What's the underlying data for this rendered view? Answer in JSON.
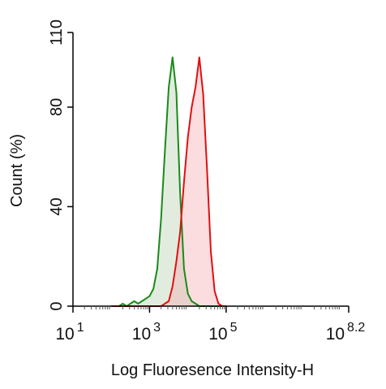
{
  "chart_data": {
    "type": "line",
    "x_label": "Log Fluoresence Intensity-H",
    "y_label": "Count  (%)",
    "x": [
      2.0,
      2.1,
      2.2,
      2.3,
      2.4,
      2.5,
      2.6,
      2.7,
      2.8,
      2.9,
      3.0,
      3.1,
      3.2,
      3.3,
      3.4,
      3.5,
      3.6,
      3.7,
      3.8,
      3.9,
      4.0,
      4.1,
      4.2,
      4.3,
      4.4,
      4.5,
      4.6,
      4.7,
      4.8,
      4.9,
      5.0
    ],
    "series": [
      {
        "color": "#1a8a1a",
        "fill": "rgba(170,200,160,0.35)",
        "values": [
          0,
          0,
          0,
          1,
          0,
          1,
          2,
          1,
          2,
          3,
          4,
          7,
          15,
          35,
          62,
          88,
          100,
          86,
          45,
          15,
          5,
          2,
          1,
          0,
          0,
          0,
          0,
          0,
          0,
          0,
          0
        ]
      },
      {
        "color": "#e01010",
        "fill": "rgba(245,170,175,0.4)",
        "values": [
          0,
          0,
          0,
          0,
          0,
          0,
          0,
          0,
          0,
          0,
          0,
          0,
          0,
          0,
          1,
          2,
          8,
          18,
          30,
          50,
          68,
          80,
          88,
          100,
          85,
          55,
          22,
          6,
          1,
          0,
          0
        ]
      }
    ],
    "xlim": [
      1,
      8.2
    ],
    "xticks": [
      {
        "value": 1,
        "label": "10",
        "sup": "1"
      },
      {
        "value": 3,
        "label": "10",
        "sup": "3"
      },
      {
        "value": 5,
        "label": "10",
        "sup": "5"
      },
      {
        "value": 8.2,
        "label": "10",
        "sup": "8.2"
      }
    ],
    "ylim": [
      0,
      110
    ],
    "yticks": [
      0,
      40,
      80,
      110
    ]
  }
}
